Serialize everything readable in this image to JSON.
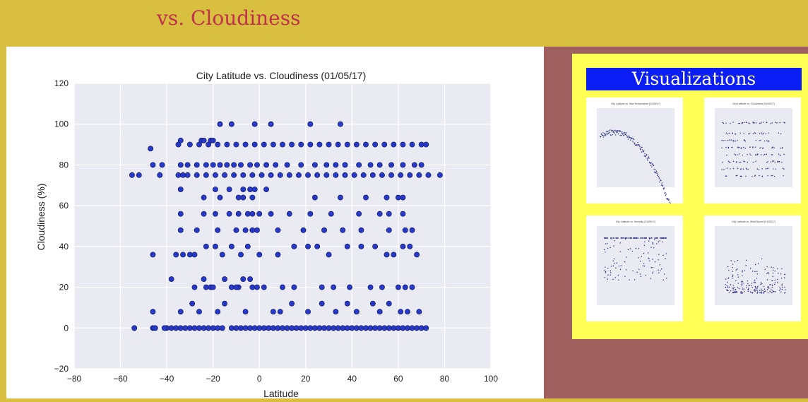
{
  "page": {
    "title": "vs. Cloudiness"
  },
  "sidebar": {
    "heading": "Visualizations",
    "thumbnails": [
      {
        "title": "City Latitude vs. Max Temperature (01/05/17)"
      },
      {
        "title": "City Latitude vs. Cloudiness (01/05/17)"
      },
      {
        "title": "City Latitude vs. Humidity (01/05/17)"
      },
      {
        "title": "City Latitude vs. Wind Speed (01/05/17)"
      }
    ]
  },
  "colors": {
    "header_bg": "#d8bf3f",
    "title_color": "#c0304a",
    "sidebar_bg": "#a06060",
    "viz_box_bg": "#ffff55",
    "viz_heading_bg": "#0a1ef5",
    "point_fill": "#2838c8",
    "plot_bg": "#eaeaf2"
  },
  "chart_data": {
    "type": "scatter",
    "title": "City Latitude vs. Cloudiness (01/05/17)",
    "xlabel": "Latitude",
    "ylabel": "Cloudiness (%)",
    "xlim": [
      -80,
      100
    ],
    "ylim": [
      -20,
      120
    ],
    "xticks": [
      -80,
      -60,
      -40,
      -20,
      0,
      20,
      40,
      60,
      80,
      100
    ],
    "yticks": [
      -20,
      0,
      20,
      40,
      60,
      80,
      100,
      120
    ],
    "grid": true,
    "x": [
      -54,
      -46,
      -45,
      -40,
      -38,
      -36,
      -34,
      -32,
      -30,
      -28,
      -26,
      -24,
      -22,
      -20,
      -18,
      -16,
      -12,
      -10,
      -8,
      -6,
      -4,
      -2,
      0,
      2,
      4,
      6,
      8,
      10,
      12,
      14,
      16,
      18,
      20,
      22,
      24,
      26,
      28,
      30,
      32,
      34,
      36,
      38,
      40,
      42,
      44,
      46,
      48,
      50,
      52,
      54,
      56,
      58,
      60,
      62,
      64,
      66,
      68,
      70,
      72,
      -55,
      -52,
      -43,
      -35,
      -33,
      -31,
      -27,
      -23,
      -19,
      -15,
      -11,
      -7,
      -3,
      1,
      5,
      9,
      13,
      17,
      21,
      25,
      29,
      33,
      37,
      41,
      45,
      49,
      53,
      57,
      61,
      65,
      69,
      73,
      78,
      -35,
      -30,
      -26,
      -22,
      -18,
      -14,
      -10,
      -6,
      -2,
      2,
      6,
      10,
      14,
      18,
      22,
      26,
      30,
      34,
      38,
      42,
      46,
      50,
      54,
      58,
      62,
      66,
      70,
      72,
      -47,
      -34,
      -25,
      -24,
      -21,
      -20,
      -17,
      -12,
      -2,
      5,
      22,
      35,
      -46,
      -41,
      -34,
      -29,
      -26,
      -23,
      -21,
      -18,
      -15,
      -12,
      -9,
      -6,
      -3,
      -1,
      6,
      9,
      14,
      21,
      27,
      33,
      38,
      42,
      49,
      52,
      56,
      61,
      64,
      69,
      -38,
      -28,
      -24,
      -20,
      -15,
      -10,
      -7,
      -4,
      2,
      10,
      15,
      27,
      32,
      39,
      48,
      53,
      60,
      63,
      66,
      -46,
      -36,
      -33,
      -30,
      -28,
      -23,
      -19,
      -16,
      -12,
      -8,
      -5,
      0,
      8,
      15,
      21,
      25,
      30,
      38,
      44,
      50,
      55,
      58,
      62,
      65,
      68,
      -34,
      -27,
      -18,
      -10,
      -6,
      -3,
      -1,
      8,
      19,
      28,
      36,
      44,
      56,
      63,
      66,
      -34,
      -24,
      -19,
      -13,
      -9,
      -5,
      -3,
      0,
      5,
      13,
      22,
      31,
      43,
      52,
      56,
      62,
      -34,
      -19,
      -13,
      -7,
      -4,
      -2,
      3,
      -9,
      46,
      55,
      62,
      -24,
      -17,
      -7,
      -3,
      24,
      35,
      60,
      -46,
      -42,
      -34,
      -31,
      -27,
      -23,
      -20,
      -17,
      -14,
      -11,
      -8,
      -4,
      -1,
      3,
      7,
      12,
      18,
      24,
      29,
      33,
      37,
      43,
      48,
      52,
      57,
      62,
      67,
      70
    ],
    "y": [
      0,
      0,
      0,
      0,
      0,
      0,
      0,
      0,
      0,
      0,
      0,
      0,
      0,
      0,
      0,
      0,
      0,
      0,
      0,
      0,
      0,
      0,
      0,
      0,
      0,
      0,
      0,
      0,
      0,
      0,
      0,
      0,
      0,
      0,
      0,
      0,
      0,
      0,
      0,
      0,
      0,
      0,
      0,
      0,
      0,
      0,
      0,
      0,
      0,
      0,
      0,
      0,
      0,
      0,
      0,
      0,
      0,
      0,
      0,
      75,
      75,
      75,
      75,
      75,
      75,
      75,
      75,
      75,
      75,
      75,
      75,
      75,
      75,
      75,
      75,
      75,
      75,
      75,
      75,
      75,
      75,
      75,
      75,
      75,
      75,
      75,
      75,
      75,
      75,
      75,
      75,
      75,
      90,
      90,
      90,
      90,
      90,
      90,
      90,
      90,
      90,
      90,
      90,
      90,
      90,
      90,
      90,
      90,
      90,
      90,
      90,
      90,
      90,
      90,
      90,
      90,
      90,
      90,
      90,
      90,
      88,
      92,
      92,
      92,
      92,
      92,
      100,
      100,
      100,
      100,
      100,
      100,
      8,
      0,
      8,
      12,
      8,
      20,
      20,
      8,
      12,
      20,
      20,
      8,
      20,
      20,
      8,
      8,
      12,
      8,
      12,
      8,
      12,
      8,
      12,
      8,
      12,
      8,
      8,
      8,
      24,
      20,
      24,
      20,
      24,
      20,
      24,
      24,
      20,
      20,
      20,
      20,
      20,
      20,
      20,
      20,
      20,
      20,
      20,
      36,
      36,
      36,
      36,
      36,
      40,
      40,
      36,
      40,
      36,
      40,
      36,
      36,
      40,
      40,
      40,
      36,
      40,
      40,
      40,
      36,
      36,
      40,
      40,
      36,
      48,
      48,
      48,
      48,
      48,
      48,
      48,
      48,
      48,
      48,
      48,
      48,
      48,
      48,
      48,
      56,
      56,
      56,
      56,
      56,
      56,
      56,
      56,
      56,
      56,
      56,
      56,
      56,
      56,
      56,
      56,
      68,
      68,
      68,
      68,
      68,
      68,
      68,
      64,
      64,
      64,
      64,
      64,
      64,
      64,
      64,
      64,
      64,
      64,
      80,
      80,
      80,
      80,
      80,
      80,
      80,
      80,
      80,
      80,
      80,
      80,
      80,
      80,
      80,
      80,
      80,
      80,
      80,
      80,
      80,
      80,
      80,
      80,
      80,
      80,
      80,
      80
    ]
  }
}
